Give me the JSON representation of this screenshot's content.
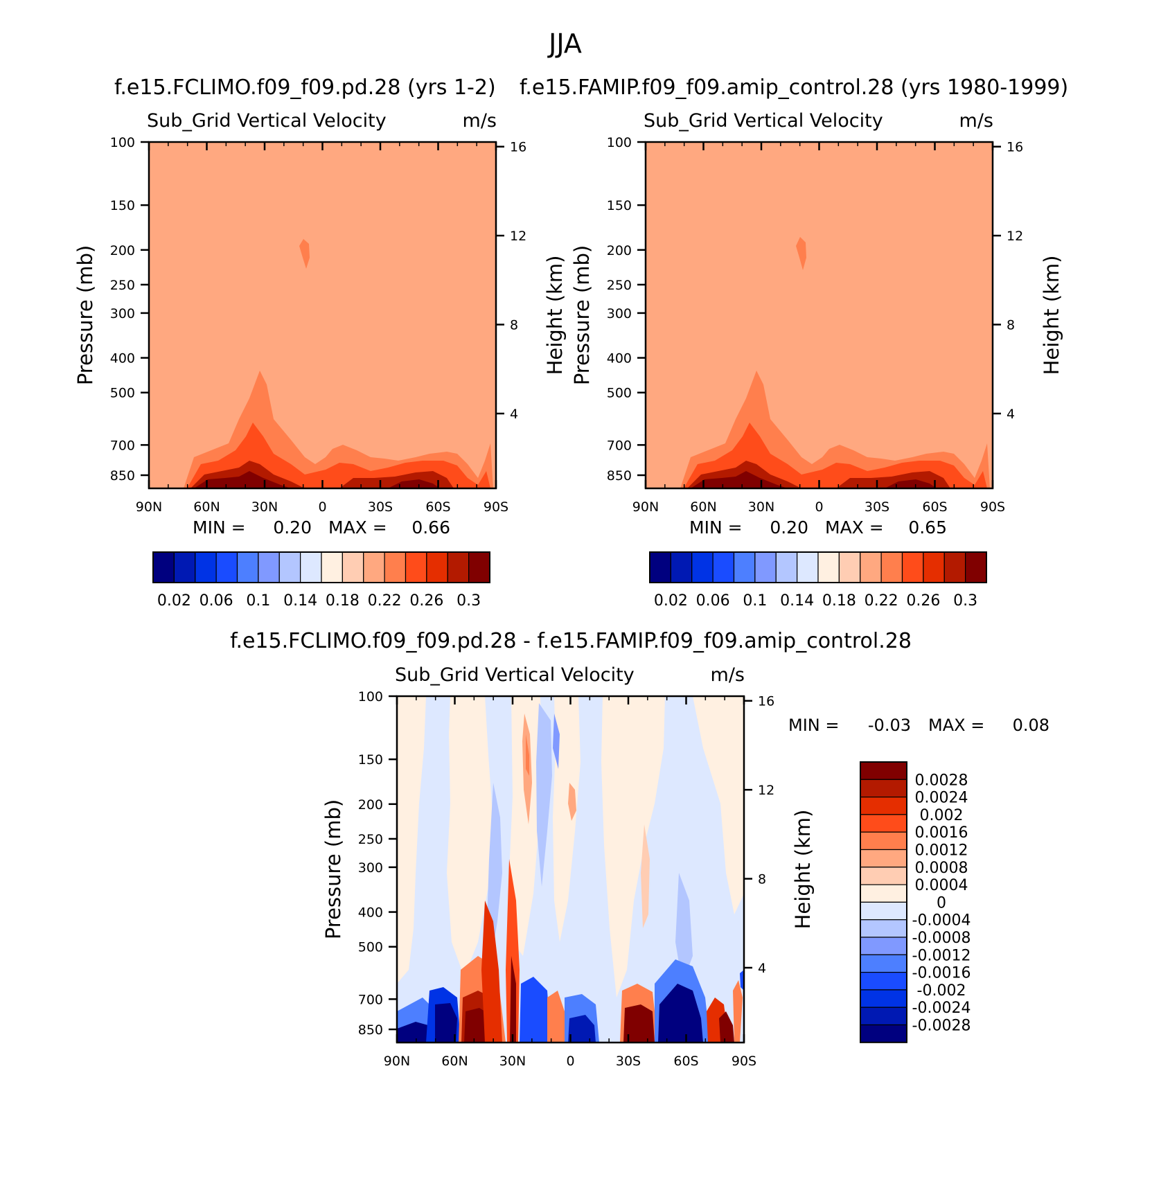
{
  "figure": {
    "title": "JJA"
  },
  "colors": {
    "frame": "#000000",
    "cbar_abs": [
      "#00007f",
      "#0019b3",
      "#0033e5",
      "#1a4cff",
      "#4d7fff",
      "#8099ff",
      "#b3c6ff",
      "#dde8ff",
      "#fff0e1",
      "#ffcdb3",
      "#ffa880",
      "#ff7f4d",
      "#ff4c1a",
      "#e52e00",
      "#b31a00",
      "#800000"
    ],
    "cbar_diff": [
      "#00007f",
      "#0019b3",
      "#0033e5",
      "#1a4cff",
      "#4d7fff",
      "#8099ff",
      "#b3c6ff",
      "#dde8ff",
      "#fff0e1",
      "#ffcdb3",
      "#ffa880",
      "#ff7f4d",
      "#ff4c1a",
      "#e52e00",
      "#b31a00",
      "#800000"
    ]
  },
  "panels": {
    "p1": {
      "case_title": "f.e15.FCLIMO.f09_f09.pd.28 (yrs 1-2)",
      "var_label": "Sub_Grid Vertical Velocity",
      "units": "m/s",
      "min_label": "MIN =",
      "min_value": "0.20",
      "max_label": "MAX =",
      "max_value": "0.66"
    },
    "p2": {
      "case_title": "f.e15.FAMIP.f09_f09.amip_control.28 (yrs 1980-1999)",
      "var_label": "Sub_Grid Vertical Velocity",
      "units": "m/s",
      "min_label": "MIN =",
      "min_value": "0.20",
      "max_label": "MAX =",
      "max_value": "0.65"
    },
    "p3": {
      "case_title": "f.e15.FCLIMO.f09_f09.pd.28 - f.e15.FAMIP.f09_f09.amip_control.28",
      "var_label": "Sub_Grid Vertical Velocity",
      "units": "m/s",
      "min_label": "MIN =",
      "min_value": "-0.03",
      "max_label": "MAX =",
      "max_value": "0.08"
    }
  },
  "chart_data": [
    {
      "type": "heatmap",
      "title": "f.e15.FCLIMO.f09_f09.pd.28 (yrs 1-2)",
      "subtitle": "Sub_Grid Vertical Velocity",
      "units": "m/s",
      "xlabel": "",
      "ylabel": "Pressure (mb)",
      "y2label": "Height (km)",
      "xticks": [
        "90N",
        "60N",
        "30N",
        "0",
        "30S",
        "60S",
        "90S"
      ],
      "xlim": [
        90,
        -90
      ],
      "yticks": [
        100,
        150,
        200,
        250,
        300,
        400,
        500,
        700,
        850
      ],
      "ylim": [
        100,
        925
      ],
      "y2ticks": [
        16,
        12,
        8,
        4
      ],
      "colorbar_labels": [
        "0.02",
        "0.06",
        "0.1",
        "0.14",
        "0.18",
        "0.22",
        "0.26",
        "0.3"
      ],
      "min": 0.2,
      "max": 0.66
    },
    {
      "type": "heatmap",
      "title": "f.e15.FAMIP.f09_f09.amip_control.28 (yrs 1980-1999)",
      "subtitle": "Sub_Grid Vertical Velocity",
      "units": "m/s",
      "xlabel": "",
      "ylabel": "Pressure (mb)",
      "y2label": "Height (km)",
      "xticks": [
        "90N",
        "60N",
        "30N",
        "0",
        "30S",
        "60S",
        "90S"
      ],
      "xlim": [
        90,
        -90
      ],
      "yticks": [
        100,
        150,
        200,
        250,
        300,
        400,
        500,
        700,
        850
      ],
      "ylim": [
        100,
        925
      ],
      "y2ticks": [
        16,
        12,
        8,
        4
      ],
      "colorbar_labels": [
        "0.02",
        "0.06",
        "0.1",
        "0.14",
        "0.18",
        "0.22",
        "0.26",
        "0.3"
      ],
      "min": 0.2,
      "max": 0.65
    },
    {
      "type": "heatmap",
      "title": "f.e15.FCLIMO.f09_f09.pd.28 - f.e15.FAMIP.f09_f09.amip_control.28",
      "subtitle": "Sub_Grid Vertical Velocity",
      "units": "m/s",
      "xlabel": "",
      "ylabel": "Pressure (mb)",
      "y2label": "Height (km)",
      "xticks": [
        "90N",
        "60N",
        "30N",
        "0",
        "30S",
        "60S",
        "90S"
      ],
      "xlim": [
        90,
        -90
      ],
      "yticks": [
        100,
        150,
        200,
        250,
        300,
        400,
        500,
        700,
        850
      ],
      "ylim": [
        100,
        925
      ],
      "y2ticks": [
        16,
        12,
        8,
        4
      ],
      "colorbar_labels": [
        "0.0028",
        "0.0024",
        "0.002",
        "0.0016",
        "0.0012",
        "0.0008",
        "0.0004",
        "0",
        "-0.0004",
        "-0.0008",
        "-0.0012",
        "-0.0016",
        "-0.002",
        "-0.0024",
        "-0.0028"
      ],
      "min": -0.03,
      "max": 0.08
    }
  ]
}
